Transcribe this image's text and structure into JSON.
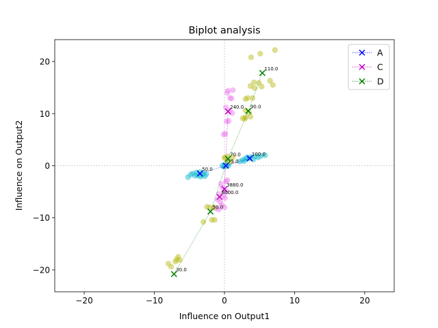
{
  "chart_data": {
    "type": "scatter",
    "title": "Biplot analysis",
    "xlabel": "Influence on Output1",
    "ylabel": "Influence on Output2",
    "xlim": [
      -24.2,
      24.2
    ],
    "ylim": [
      -24.2,
      24.2
    ],
    "xticks": [
      -20,
      -10,
      0,
      10,
      20
    ],
    "yticks": [
      -20,
      -10,
      0,
      10,
      20
    ],
    "xtick_labels": [
      "−20",
      "−10",
      "0",
      "10",
      "20"
    ],
    "ytick_labels": [
      "−20",
      "−10",
      "0",
      "10",
      "20"
    ],
    "grid": false,
    "reference_lines": {
      "x": 0,
      "y": 0,
      "color": "#cccccc"
    },
    "legend_position": "top-right",
    "series": [
      {
        "name": "A",
        "color": "#0000ff",
        "marker": "x",
        "cloud_color": "#17becf",
        "centroids": [
          {
            "x": -3.5,
            "y": -1.5,
            "label": "50.0"
          },
          {
            "x": 0.2,
            "y": 0.0,
            "label": "75.0"
          },
          {
            "x": 3.6,
            "y": 1.4,
            "label": "100.0"
          }
        ],
        "cloud": [
          [
            -5.2,
            -2.2
          ],
          [
            -4.8,
            -1.7
          ],
          [
            -4.5,
            -1.5
          ],
          [
            -4.0,
            -1.3
          ],
          [
            -3.8,
            -1.9
          ],
          [
            -3.5,
            -1.2
          ],
          [
            -3.2,
            -1.8
          ],
          [
            -3.0,
            -1.4
          ],
          [
            -2.8,
            -2.0
          ],
          [
            -2.6,
            -1.6
          ],
          [
            -4.2,
            -1.9
          ],
          [
            -3.4,
            -2.1
          ],
          [
            -0.3,
            0.0
          ],
          [
            0.0,
            0.2
          ],
          [
            0.3,
            -0.1
          ],
          [
            0.6,
            0.1
          ],
          [
            -0.1,
            -0.2
          ],
          [
            0.4,
            0.3
          ],
          [
            2.2,
            0.8
          ],
          [
            2.6,
            1.1
          ],
          [
            3.0,
            1.3
          ],
          [
            3.2,
            1.6
          ],
          [
            3.5,
            1.4
          ],
          [
            3.8,
            1.7
          ],
          [
            4.1,
            1.2
          ],
          [
            4.4,
            1.8
          ],
          [
            4.8,
            1.6
          ],
          [
            5.2,
            1.9
          ],
          [
            5.8,
            2.0
          ],
          [
            2.8,
            0.9
          ]
        ]
      },
      {
        "name": "C",
        "color": "#bf00bf",
        "marker": "x",
        "cloud_color": "#ee82ee",
        "centroids": [
          {
            "x": 0.5,
            "y": 10.4,
            "label": "240.0"
          },
          {
            "x": 0.0,
            "y": -4.5,
            "label": "3880.0"
          },
          {
            "x": -0.7,
            "y": -6.0,
            "label": "8000.0"
          }
        ],
        "cloud": [
          [
            0.4,
            14.0
          ],
          [
            0.5,
            14.4
          ],
          [
            1.2,
            14.5
          ],
          [
            0.8,
            13.0
          ],
          [
            1.0,
            12.9
          ],
          [
            0.2,
            11.2
          ],
          [
            0.7,
            10.6
          ],
          [
            0.3,
            8.5
          ],
          [
            0.6,
            8.6
          ],
          [
            -0.1,
            6.0
          ],
          [
            0.1,
            6.1
          ],
          [
            1.1,
            10.1
          ],
          [
            -0.5,
            -3.5
          ],
          [
            0.2,
            -3.0
          ],
          [
            0.4,
            -2.8
          ],
          [
            -0.3,
            -4.2
          ],
          [
            0.3,
            -5.0
          ],
          [
            -0.8,
            -5.4
          ],
          [
            -1.0,
            -6.5
          ],
          [
            -0.6,
            -7.0
          ],
          [
            -0.4,
            -7.6
          ],
          [
            -1.2,
            -8.2
          ],
          [
            -0.8,
            -8.4
          ],
          [
            0.1,
            -6.2
          ],
          [
            -0.2,
            -5.8
          ],
          [
            0.0,
            -8.0
          ]
        ]
      },
      {
        "name": "D",
        "color": "#008000",
        "marker": "x",
        "cloud_color": "#bcbd22",
        "centroids": [
          {
            "x": 5.4,
            "y": 17.8,
            "label": "110.0"
          },
          {
            "x": 3.4,
            "y": 10.5,
            "label": "90.0"
          },
          {
            "x": 0.5,
            "y": 1.3,
            "label": "70.0"
          },
          {
            "x": -2.0,
            "y": -8.8,
            "label": "50.0"
          },
          {
            "x": -7.2,
            "y": -20.8,
            "label": "30.0"
          }
        ],
        "cloud": [
          [
            3.8,
            20.8
          ],
          [
            5.1,
            21.5
          ],
          [
            7.2,
            22.2
          ],
          [
            4.2,
            16.0
          ],
          [
            4.9,
            15.9
          ],
          [
            5.3,
            15.2
          ],
          [
            6.5,
            16.3
          ],
          [
            6.9,
            15.5
          ],
          [
            3.7,
            15.3
          ],
          [
            4.3,
            14.9
          ],
          [
            3.3,
            13.0
          ],
          [
            4.0,
            13.0
          ],
          [
            3.0,
            12.8
          ],
          [
            3.0,
            10.6
          ],
          [
            3.5,
            10.2
          ],
          [
            3.0,
            9.3
          ],
          [
            3.7,
            9.4
          ],
          [
            2.6,
            9.1
          ],
          [
            2.9,
            9.0
          ],
          [
            0.1,
            1.6
          ],
          [
            0.5,
            1.8
          ],
          [
            0.9,
            0.8
          ],
          [
            0.4,
            0.9
          ],
          [
            0.0,
            1.5
          ],
          [
            1.2,
            1.7
          ],
          [
            -2.5,
            -7.9
          ],
          [
            -2.1,
            -8.0
          ],
          [
            -1.5,
            -8.0
          ],
          [
            -1.8,
            -10.4
          ],
          [
            -1.4,
            -10.4
          ],
          [
            -3.0,
            -10.8
          ],
          [
            -8.0,
            -18.8
          ],
          [
            -7.6,
            -19.4
          ],
          [
            -6.8,
            -18.0
          ],
          [
            -6.4,
            -18.1
          ],
          [
            -6.6,
            -17.5
          ],
          [
            -7.0,
            -18.4
          ]
        ]
      }
    ]
  }
}
